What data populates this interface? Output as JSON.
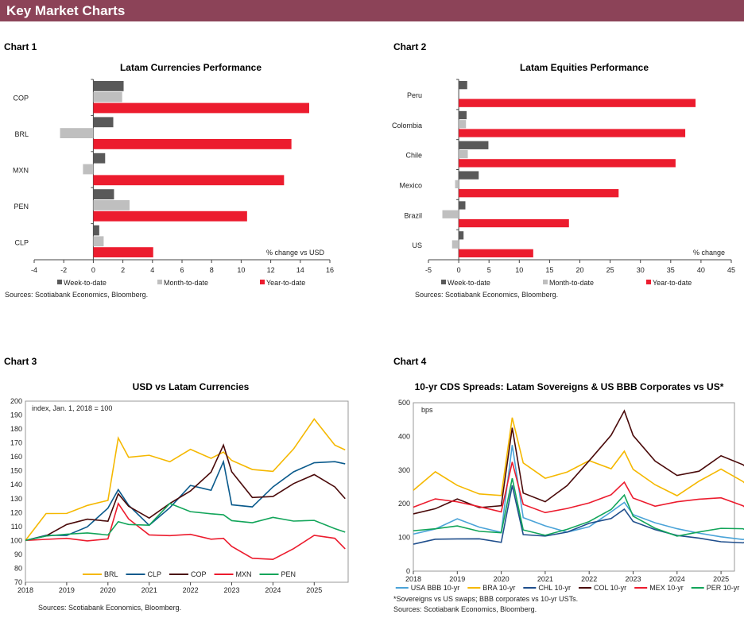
{
  "header": {
    "title": "Key Market Charts"
  },
  "charts": [
    {
      "label": "Chart 1",
      "sources": "Sources:  Scotiabank  Economics,  Bloomberg."
    },
    {
      "label": "Chart 2",
      "sources": "Sources:  Scotiabank  Economics,  Bloomberg."
    },
    {
      "label": "Chart 3",
      "sources": "Sources:  Scotiabank  Economics,  Bloomberg."
    },
    {
      "label": "Chart 4",
      "footnote": "*Sovereigns vs US swaps; BBB corporates  vs 10-yr USTs.",
      "sources": "Sources:  Scotiabank  Economics,  Bloomberg."
    }
  ],
  "chart_data": [
    {
      "type": "bar",
      "orientation": "horizontal",
      "title": "Latam Currencies Performance",
      "annotation": "% change vs USD",
      "categories": [
        "COP",
        "BRL",
        "MXN",
        "PEN",
        "CLP"
      ],
      "xlim": [
        -4,
        16
      ],
      "xticks": [
        -4,
        -2,
        0,
        2,
        4,
        6,
        8,
        10,
        12,
        14,
        16
      ],
      "legend": "bottom",
      "series": [
        {
          "name": "Week-to-date",
          "color": "#595959",
          "values": [
            2.05,
            1.35,
            0.8,
            1.4,
            0.4
          ]
        },
        {
          "name": "Month-to-date",
          "color": "#bfbfbf",
          "values": [
            1.95,
            -2.25,
            -0.7,
            2.45,
            0.7
          ]
        },
        {
          "name": "Year-to-date",
          "color": "#ec1c2e",
          "values": [
            14.6,
            13.4,
            12.9,
            10.4,
            4.05
          ]
        }
      ]
    },
    {
      "type": "bar",
      "orientation": "horizontal",
      "title": "Latam Equities Performance",
      "annotation": "% change",
      "categories": [
        "Peru",
        "Colombia",
        "Chile",
        "Mexico",
        "Brazil",
        "US"
      ],
      "xlim": [
        -5,
        45
      ],
      "xticks": [
        -5,
        0,
        5,
        10,
        15,
        20,
        25,
        30,
        35,
        40,
        45
      ],
      "legend": "bottom",
      "series": [
        {
          "name": "Week-to-date",
          "color": "#595959",
          "values": [
            1.4,
            1.3,
            4.9,
            3.3,
            1.1,
            0.8
          ]
        },
        {
          "name": "Month-to-date",
          "color": "#bfbfbf",
          "values": [
            0,
            1.2,
            1.5,
            -0.6,
            -2.7,
            -1.1
          ]
        },
        {
          "name": "Year-to-date",
          "color": "#ec1c2e",
          "values": [
            39.1,
            37.4,
            35.8,
            26.4,
            18.2,
            12.3
          ]
        }
      ]
    },
    {
      "type": "line",
      "title": "USD vs Latam Currencies",
      "annotation": "index, Jan. 1, 2018 = 100",
      "ylim": [
        70,
        200
      ],
      "yticks": [
        70,
        80,
        90,
        100,
        110,
        120,
        130,
        140,
        150,
        160,
        170,
        180,
        190,
        200
      ],
      "xticks": [
        "2018",
        "2019",
        "2020",
        "2021",
        "2022",
        "2023",
        "2024",
        "2025"
      ],
      "legend": "bottom",
      "x": [
        2018,
        2018.5,
        2019,
        2019.5,
        2020,
        2020.25,
        2020.5,
        2021,
        2021.5,
        2022,
        2022.5,
        2022.8,
        2023,
        2023.5,
        2024,
        2024.5,
        2025,
        2025.5,
        2025.75
      ],
      "series": [
        {
          "name": "BRL",
          "color": "#f5b800",
          "values": [
            100,
            118,
            118,
            125,
            130,
            175,
            160,
            160,
            155,
            165,
            160,
            165,
            158,
            150,
            148,
            165,
            188,
            170,
            165
          ]
        },
        {
          "name": "CLP",
          "color": "#0a5a8c",
          "values": [
            100,
            105,
            105,
            110,
            122,
            135,
            125,
            112,
            125,
            140,
            135,
            155,
            125,
            125,
            140,
            150,
            155,
            155,
            155
          ]
        },
        {
          "name": "COP",
          "color": "#4a0a0a",
          "values": [
            100,
            102,
            110,
            115,
            115,
            135,
            125,
            115,
            125,
            135,
            150,
            170,
            150,
            130,
            130,
            140,
            148,
            140,
            130
          ]
        },
        {
          "name": "MXN",
          "color": "#ec1c2e",
          "values": [
            100,
            102,
            103,
            100,
            100,
            125,
            115,
            105,
            105,
            105,
            100,
            100,
            95,
            88,
            88,
            95,
            103,
            100,
            94
          ]
        },
        {
          "name": "PEN",
          "color": "#12a55a",
          "values": [
            100,
            102,
            103,
            105,
            105,
            115,
            112,
            110,
            125,
            120,
            120,
            120,
            115,
            112,
            115,
            113,
            115,
            110,
            106
          ]
        }
      ]
    },
    {
      "type": "line",
      "title": "10-yr CDS Spreads: Latam Sovereigns & US BBB Corporates vs US*",
      "annotation": "bps",
      "ylim": [
        0,
        500
      ],
      "yticks": [
        0,
        100,
        200,
        300,
        400,
        500
      ],
      "xticks": [
        "2018",
        "2019",
        "2020",
        "2021",
        "2022",
        "2023",
        "2024",
        "2025"
      ],
      "legend": "bottom",
      "x": [
        2018,
        2018.5,
        2019,
        2019.5,
        2020,
        2020.25,
        2020.5,
        2021,
        2021.5,
        2022,
        2022.5,
        2022.8,
        2023,
        2023.5,
        2024,
        2024.5,
        2025,
        2025.5,
        2025.75
      ],
      "series": [
        {
          "name": "USA BBB 10-yr",
          "color": "#4aa3d8",
          "values": [
            110,
            120,
            150,
            130,
            120,
            380,
            160,
            130,
            110,
            130,
            180,
            210,
            170,
            140,
            120,
            110,
            105,
            100,
            98
          ]
        },
        {
          "name": "BRA 10-yr",
          "color": "#f5b800",
          "values": [
            240,
            300,
            260,
            230,
            220,
            450,
            320,
            280,
            300,
            330,
            300,
            350,
            300,
            260,
            230,
            270,
            300,
            260,
            235
          ]
        },
        {
          "name": "CHL 10-yr",
          "color": "#1f4e8c",
          "values": [
            80,
            90,
            90,
            95,
            90,
            260,
            110,
            100,
            110,
            140,
            160,
            190,
            150,
            120,
            100,
            95,
            90,
            90,
            92
          ]
        },
        {
          "name": "COL 10-yr",
          "color": "#4a0a0a",
          "values": [
            170,
            190,
            220,
            190,
            190,
            420,
            230,
            210,
            260,
            330,
            400,
            470,
            400,
            330,
            290,
            300,
            340,
            310,
            290
          ]
        },
        {
          "name": "MEX 10-yr",
          "color": "#ec1c2e",
          "values": [
            190,
            210,
            200,
            190,
            180,
            330,
            200,
            170,
            180,
            200,
            230,
            270,
            220,
            190,
            200,
            210,
            220,
            200,
            170
          ]
        },
        {
          "name": "PER 10-yr",
          "color": "#12a55a",
          "values": [
            120,
            130,
            140,
            120,
            110,
            270,
            120,
            110,
            130,
            150,
            180,
            220,
            160,
            130,
            110,
            120,
            125,
            120,
            110
          ]
        }
      ]
    }
  ]
}
